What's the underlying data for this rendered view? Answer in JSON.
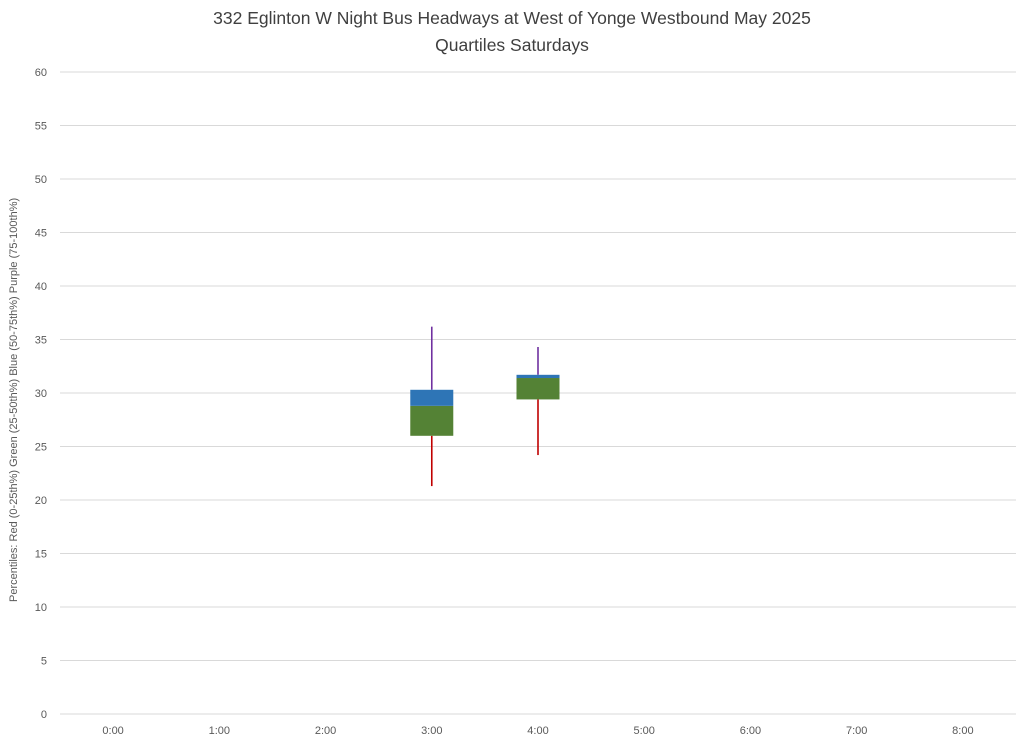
{
  "chart_data": {
    "type": "boxplot",
    "title": "332 Eglinton W Night Bus Headways at West of Yonge Westbound May 2025",
    "subtitle": "Quartiles Saturdays",
    "ylabel": "Percentiles:  Red (0-25th%)  Green (25-50th%)  Blue (50-75th%)  Purple (75-100th%)",
    "xlabel": "",
    "ylim": [
      0,
      60
    ],
    "ytick_step": 5,
    "yticks": [
      0,
      5,
      10,
      15,
      20,
      25,
      30,
      35,
      40,
      45,
      50,
      55,
      60
    ],
    "categories": [
      "0:00",
      "1:00",
      "2:00",
      "3:00",
      "4:00",
      "5:00",
      "6:00",
      "7:00",
      "8:00"
    ],
    "grid": true,
    "legend_position": "none",
    "colors": {
      "whisker_low_red": "#C00000",
      "box_lower_green": "#548235",
      "box_upper_blue": "#2E75B6",
      "whisker_high_purple": "#7030A0",
      "gridline": "#D9D9D9",
      "axis_text": "#595959",
      "title_text": "#3F3F3F"
    },
    "points": [
      {
        "category": "3:00",
        "min": 21.3,
        "q1": 26.0,
        "median": 28.8,
        "q3": 30.3,
        "max": 36.2
      },
      {
        "category": "4:00",
        "min": 24.2,
        "q1": 29.4,
        "median": 31.4,
        "q3": 31.7,
        "max": 34.3
      }
    ]
  }
}
